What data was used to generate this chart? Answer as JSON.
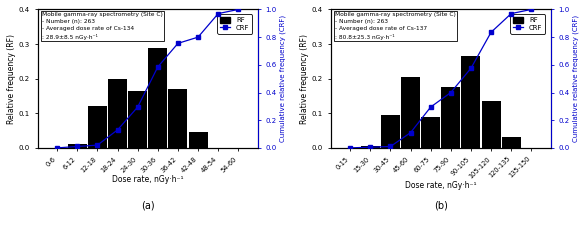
{
  "panel_a": {
    "title_line1": "Mobile gamma-ray spectrometry (Site C)",
    "title_line2": "- Number (n): 263",
    "title_line3": "- Averaged dose rate of Cs-134",
    "title_line4": ": 28.9±8.5 nGy·h⁻¹",
    "categories": [
      "0-6",
      "6-12",
      "12-18",
      "18-24",
      "24-30",
      "30-36",
      "36-42",
      "42-48",
      "48-54",
      "54-60"
    ],
    "rf_values": [
      0.0,
      0.01,
      0.12,
      0.2,
      0.165,
      0.29,
      0.17,
      0.045,
      0.0,
      0.0
    ],
    "crf_values": [
      0.0,
      0.01,
      0.02,
      0.13,
      0.295,
      0.585,
      0.755,
      0.8,
      0.97,
      1.0
    ],
    "xlabel": "Dose rate, nGy·h⁻¹",
    "ylabel_left": "Relative frequency (RF)",
    "ylabel_right": "Cumulative relative frequency (CRF)",
    "label_bottom": "(a)"
  },
  "panel_b": {
    "title_line1": "Mobile gamma-ray spectrometry (Site C)",
    "title_line2": "- Number (n): 263",
    "title_line3": "- Averaged dose rate of Cs-137",
    "title_line4": ": 80.8±25.3 nGy·h⁻¹",
    "categories": [
      "0-15",
      "15-30",
      "30-45",
      "45-60",
      "60-75",
      "75-90",
      "90-105",
      "105-120",
      "120-135",
      "135-150"
    ],
    "rf_values": [
      0.0,
      0.005,
      0.095,
      0.205,
      0.088,
      0.175,
      0.265,
      0.135,
      0.03,
      0.0
    ],
    "crf_values": [
      0.0,
      0.005,
      0.01,
      0.11,
      0.295,
      0.4,
      0.575,
      0.835,
      0.97,
      1.0
    ],
    "xlabel": "Dose rate, nGy·h⁻¹",
    "ylabel_left": "Relative frequency (RF)",
    "ylabel_right": "Cumulative relative frequency (CRF)",
    "label_bottom": "(b)"
  },
  "bar_color": "#000000",
  "crf_color": "#0000cc",
  "ylim_rf": [
    0.0,
    0.4
  ],
  "ylim_crf": [
    0.0,
    1.0
  ],
  "yticks_rf": [
    0.0,
    0.1,
    0.2,
    0.3,
    0.4
  ],
  "yticks_crf": [
    0.0,
    0.2,
    0.4,
    0.6,
    0.8,
    1.0
  ],
  "background_color": "#ffffff"
}
